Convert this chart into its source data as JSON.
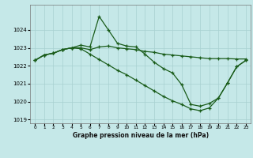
{
  "background_color": "#c5e8e8",
  "grid_color": "#a8d0d0",
  "line_color": "#1a5c1a",
  "xlabel": "Graphe pression niveau de la mer (hPa)",
  "xlim_min": -0.5,
  "xlim_max": 23.5,
  "ylim_min": 1018.8,
  "ylim_max": 1025.4,
  "yticks": [
    1019,
    1020,
    1021,
    1022,
    1023,
    1024
  ],
  "xticks": [
    0,
    1,
    2,
    3,
    4,
    5,
    6,
    7,
    8,
    9,
    10,
    11,
    12,
    13,
    14,
    15,
    16,
    17,
    18,
    19,
    20,
    21,
    22,
    23
  ],
  "line1_x": [
    0,
    1,
    2,
    3,
    4,
    5,
    6,
    7,
    8,
    9,
    10,
    11,
    12,
    13,
    14,
    15,
    16,
    17,
    18,
    19,
    20,
    21,
    22,
    23
  ],
  "line1_y": [
    1022.3,
    1022.6,
    1022.7,
    1022.9,
    1023.0,
    1023.0,
    1022.9,
    1023.05,
    1023.1,
    1023.0,
    1022.95,
    1022.9,
    1022.8,
    1022.75,
    1022.65,
    1022.6,
    1022.55,
    1022.5,
    1022.45,
    1022.4,
    1022.4,
    1022.4,
    1022.38,
    1022.38
  ],
  "line2_x": [
    0,
    1,
    2,
    3,
    4,
    5,
    6,
    7,
    8,
    9,
    10,
    11,
    12,
    13,
    14,
    15,
    16,
    17,
    18,
    19,
    20,
    21,
    22,
    23
  ],
  "line2_y": [
    1022.3,
    1022.6,
    1022.7,
    1022.9,
    1023.0,
    1023.15,
    1023.05,
    1024.75,
    1024.0,
    1023.25,
    1023.1,
    1023.05,
    1022.65,
    1022.2,
    1021.85,
    1021.6,
    1020.95,
    1019.85,
    1019.75,
    1019.9,
    1020.2,
    1021.05,
    1021.95,
    1022.3
  ],
  "line3_x": [
    0,
    1,
    2,
    3,
    4,
    5,
    6,
    7,
    8,
    9,
    10,
    11,
    12,
    13,
    14,
    15,
    16,
    17,
    18,
    19,
    20,
    21,
    22,
    23
  ],
  "line3_y": [
    1022.3,
    1022.6,
    1022.7,
    1022.9,
    1023.0,
    1022.95,
    1022.65,
    1022.35,
    1022.05,
    1021.75,
    1021.5,
    1021.2,
    1020.9,
    1020.6,
    1020.3,
    1020.05,
    1019.85,
    1019.6,
    1019.5,
    1019.65,
    1020.2,
    1021.05,
    1021.95,
    1022.3
  ]
}
